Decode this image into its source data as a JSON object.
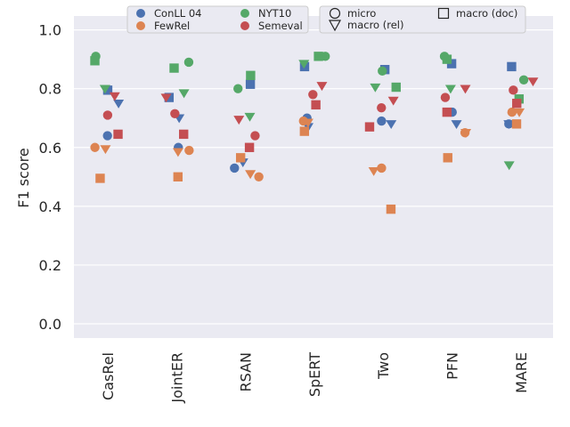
{
  "chart_data": {
    "type": "scatter",
    "title": "",
    "xlabel": "",
    "ylabel": "F1 score",
    "ylim": [
      -0.05,
      1.05
    ],
    "yticks": [
      "0.0",
      "0.2",
      "0.4",
      "0.6",
      "0.8",
      "1.0"
    ],
    "grid": true,
    "legend_position": "top-center",
    "categories": [
      "CasRel",
      "JointER",
      "RSAN",
      "SpERT",
      "Two",
      "PFN",
      "MARE"
    ],
    "datasets": [
      {
        "name": "ConLL 04",
        "color": "#4c72b0"
      },
      {
        "name": "FewRel",
        "color": "#dd8452"
      },
      {
        "name": "NYT10",
        "color": "#55a868"
      },
      {
        "name": "Semeval",
        "color": "#c44e52"
      }
    ],
    "metrics": [
      {
        "name": "micro",
        "marker": "circle"
      },
      {
        "name": "macro (rel)",
        "marker": "triangle-down"
      },
      {
        "name": "macro (doc)",
        "marker": "square"
      }
    ],
    "series": [
      {
        "dataset": "ConLL 04",
        "metric": "micro",
        "values": [
          0.64,
          0.6,
          0.53,
          0.7,
          0.69,
          0.72,
          0.68
        ]
      },
      {
        "dataset": "ConLL 04",
        "metric": "macro (rel)",
        "values": [
          0.75,
          0.7,
          0.55,
          0.67,
          0.68,
          0.68,
          0.68
        ]
      },
      {
        "dataset": "ConLL 04",
        "metric": "macro (doc)",
        "values": [
          0.795,
          0.77,
          0.815,
          0.875,
          0.865,
          0.885,
          0.875
        ]
      },
      {
        "dataset": "FewRel",
        "metric": "micro",
        "values": [
          0.6,
          0.59,
          0.5,
          0.69,
          0.53,
          0.65,
          0.72
        ]
      },
      {
        "dataset": "FewRel",
        "metric": "macro (rel)",
        "values": [
          0.595,
          0.585,
          0.51,
          0.685,
          0.52,
          0.65,
          0.72
        ]
      },
      {
        "dataset": "FewRel",
        "metric": "macro (doc)",
        "values": [
          0.495,
          0.5,
          0.565,
          0.655,
          0.39,
          0.565,
          0.68
        ]
      },
      {
        "dataset": "NYT10",
        "metric": "micro",
        "values": [
          0.91,
          0.89,
          0.8,
          0.91,
          0.86,
          0.91,
          0.83
        ]
      },
      {
        "dataset": "NYT10",
        "metric": "macro (rel)",
        "values": [
          0.8,
          0.785,
          0.705,
          0.885,
          0.805,
          0.8,
          0.54
        ]
      },
      {
        "dataset": "NYT10",
        "metric": "macro (doc)",
        "values": [
          0.895,
          0.87,
          0.845,
          0.91,
          0.805,
          0.9,
          0.765
        ]
      },
      {
        "dataset": "Semeval",
        "metric": "micro",
        "values": [
          0.71,
          0.715,
          0.64,
          0.78,
          0.735,
          0.77,
          0.795
        ]
      },
      {
        "dataset": "Semeval",
        "metric": "macro (rel)",
        "values": [
          0.775,
          0.77,
          0.695,
          0.81,
          0.76,
          0.8,
          0.825
        ]
      },
      {
        "dataset": "Semeval",
        "metric": "macro (doc)",
        "values": [
          0.645,
          0.645,
          0.6,
          0.745,
          0.67,
          0.72,
          0.75
        ]
      }
    ]
  }
}
